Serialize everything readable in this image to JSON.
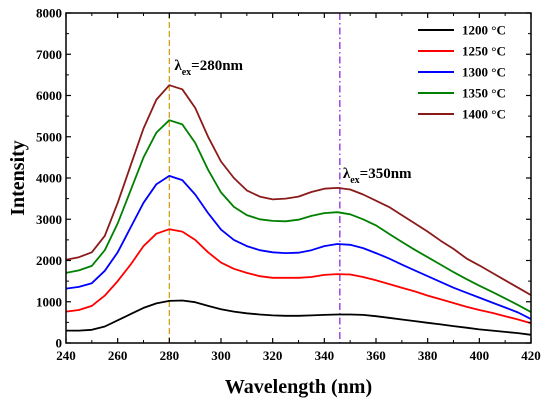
{
  "chart_data": {
    "type": "line",
    "xlabel": "Wavelength (nm)",
    "ylabel": "Intensity",
    "xlim": [
      240,
      420
    ],
    "ylim": [
      0,
      8000
    ],
    "xticks": [
      "240",
      "260",
      "280",
      "300",
      "320",
      "340",
      "360",
      "380",
      "400",
      "420"
    ],
    "yticks": [
      "0",
      "1000",
      "2000",
      "3000",
      "4000",
      "5000",
      "6000",
      "7000",
      "8000"
    ],
    "legend_position": "top-right",
    "x": [
      240,
      245,
      250,
      255,
      260,
      265,
      270,
      275,
      280,
      285,
      290,
      295,
      300,
      305,
      310,
      315,
      320,
      325,
      330,
      335,
      340,
      345,
      350,
      355,
      360,
      365,
      370,
      375,
      380,
      385,
      390,
      395,
      400,
      405,
      410,
      415,
      420
    ],
    "series": [
      {
        "name": "1200 °C",
        "color": "#000000",
        "values": [
          300,
          300,
          320,
          400,
          550,
          700,
          850,
          960,
          1020,
          1030,
          990,
          900,
          820,
          760,
          720,
          690,
          670,
          660,
          660,
          670,
          680,
          690,
          690,
          680,
          650,
          610,
          570,
          530,
          490,
          450,
          410,
          370,
          330,
          300,
          270,
          240,
          200
        ]
      },
      {
        "name": "1250 °C",
        "color": "#ff0000",
        "values": [
          760,
          800,
          900,
          1150,
          1500,
          1900,
          2350,
          2650,
          2760,
          2700,
          2500,
          2200,
          1950,
          1800,
          1700,
          1620,
          1580,
          1580,
          1580,
          1600,
          1650,
          1670,
          1660,
          1600,
          1520,
          1430,
          1340,
          1250,
          1150,
          1060,
          970,
          880,
          800,
          730,
          650,
          570,
          480
        ]
      },
      {
        "name": "1300 °C",
        "color": "#0000ff",
        "values": [
          1320,
          1360,
          1450,
          1750,
          2200,
          2800,
          3400,
          3850,
          4050,
          3950,
          3600,
          3150,
          2750,
          2500,
          2350,
          2250,
          2200,
          2180,
          2190,
          2250,
          2350,
          2400,
          2380,
          2300,
          2180,
          2050,
          1900,
          1760,
          1620,
          1480,
          1340,
          1220,
          1100,
          980,
          860,
          740,
          580
        ]
      },
      {
        "name": "1350 °C",
        "color": "#008000",
        "values": [
          1700,
          1760,
          1870,
          2250,
          2900,
          3700,
          4500,
          5100,
          5400,
          5300,
          4850,
          4200,
          3650,
          3300,
          3100,
          3000,
          2960,
          2950,
          2990,
          3080,
          3150,
          3170,
          3120,
          3000,
          2850,
          2650,
          2450,
          2260,
          2080,
          1900,
          1720,
          1550,
          1390,
          1240,
          1080,
          920,
          750
        ]
      },
      {
        "name": "1400 °C",
        "color": "#8b1a1a",
        "values": [
          2020,
          2080,
          2200,
          2600,
          3400,
          4300,
          5200,
          5900,
          6250,
          6150,
          5700,
          5000,
          4400,
          4000,
          3700,
          3550,
          3480,
          3500,
          3550,
          3660,
          3740,
          3760,
          3720,
          3600,
          3450,
          3300,
          3100,
          2900,
          2700,
          2480,
          2280,
          2050,
          1880,
          1700,
          1520,
          1340,
          1160
        ]
      }
    ],
    "annotations": [
      {
        "text_main": "λ",
        "text_sub": "ex",
        "text_rest": "=280nm",
        "x": 280,
        "line_color": "#d4a017",
        "line_style": "dashed"
      },
      {
        "text_main": "λ",
        "text_sub": "ex",
        "text_rest": "=350nm",
        "x": 346,
        "line_color": "#8a2be2",
        "line_style": "dash-dot"
      }
    ]
  }
}
